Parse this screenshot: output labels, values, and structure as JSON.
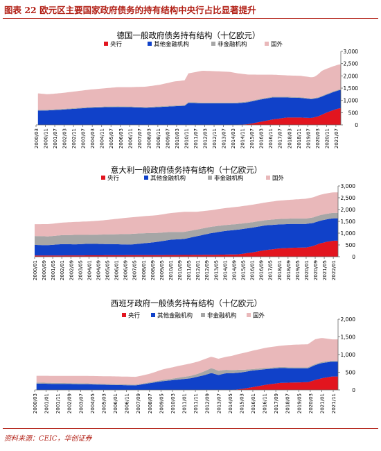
{
  "figure": {
    "title": "图表 22   欧元区主要国家政府债务的持有结构中央行占比显著提升",
    "source": "资料来源：CEIC，华创证券"
  },
  "colors": {
    "central_bank": "#e2151f",
    "other_financial": "#1041c9",
    "non_financial": "#a6a6a6",
    "foreign": "#e9b8ba"
  },
  "chart_data": [
    {
      "type": "area",
      "stacked": true,
      "title": "德国一般政府债务持有结构（十亿欧元）",
      "legend": [
        "央行",
        "其他金融机构",
        "非金融机构",
        "国外"
      ],
      "legend_position": "top",
      "y_axis_position": "right",
      "ylim": [
        0,
        3000
      ],
      "yticks": [
        "0",
        "500",
        "1,000",
        "1,500",
        "2,000",
        "2,500",
        "3,000"
      ],
      "x_start": "2000/03",
      "x_ticks": [
        "2000/03",
        "2000/11",
        "2001/07",
        "2002/03",
        "2002/11",
        "2003/07",
        "2004/03",
        "2004/11",
        "2005/07",
        "2006/03",
        "2006/11",
        "2007/07",
        "2008/03",
        "2008/11",
        "2009/07",
        "2010/03",
        "2010/11",
        "2011/07",
        "2012/03",
        "2012/11",
        "2013/07",
        "2014/03",
        "2014/11",
        "2015/07",
        "2016/03",
        "2016/11",
        "2017/07",
        "2018/03",
        "2018/11",
        "2019/07",
        "2020/03",
        "2020/11",
        "2021/07"
      ],
      "series": [
        {
          "name": "央行",
          "color": "#e2151f",
          "points": [
            [
              2000.2,
              0
            ],
            [
              2014.5,
              0
            ],
            [
              2015.25,
              30
            ],
            [
              2016.0,
              110
            ],
            [
              2017.0,
              220
            ],
            [
              2018.0,
              300
            ],
            [
              2019.0,
              300
            ],
            [
              2019.75,
              280
            ],
            [
              2020.25,
              350
            ],
            [
              2020.75,
              480
            ],
            [
              2021.25,
              590
            ],
            [
              2021.75,
              680
            ]
          ]
        },
        {
          "name": "其他金融机构",
          "color": "#1041c9",
          "points": [
            [
              2000.2,
              580
            ],
            [
              2001.0,
              590
            ],
            [
              2002.0,
              620
            ],
            [
              2003.0,
              660
            ],
            [
              2004.0,
              700
            ],
            [
              2005.0,
              720
            ],
            [
              2006.0,
              730
            ],
            [
              2007.0,
              720
            ],
            [
              2008.0,
              700
            ],
            [
              2009.0,
              730
            ],
            [
              2010.0,
              760
            ],
            [
              2010.75,
              780
            ],
            [
              2011.0,
              900
            ],
            [
              2012.0,
              880
            ],
            [
              2013.0,
              880
            ],
            [
              2014.0,
              880
            ],
            [
              2015.0,
              890
            ],
            [
              2016.0,
              910
            ],
            [
              2017.0,
              900
            ],
            [
              2018.0,
              820
            ],
            [
              2019.0,
              800
            ],
            [
              2020.0,
              760
            ],
            [
              2020.5,
              740
            ],
            [
              2021.0,
              730
            ],
            [
              2021.75,
              740
            ]
          ]
        },
        {
          "name": "非金融机构",
          "color": "#a6a6a6",
          "points": [
            [
              2000.2,
              30
            ],
            [
              2005.0,
              30
            ],
            [
              2010.0,
              30
            ],
            [
              2015.0,
              30
            ],
            [
              2021.75,
              30
            ]
          ]
        },
        {
          "name": "国外",
          "color": "#e9b8ba",
          "points": [
            [
              2000.2,
              680
            ],
            [
              2001.0,
              630
            ],
            [
              2002.0,
              650
            ],
            [
              2003.0,
              680
            ],
            [
              2004.0,
              710
            ],
            [
              2005.0,
              740
            ],
            [
              2006.0,
              780
            ],
            [
              2007.0,
              790
            ],
            [
              2008.0,
              830
            ],
            [
              2009.0,
              880
            ],
            [
              2010.0,
              980
            ],
            [
              2010.75,
              1010
            ],
            [
              2011.0,
              1170
            ],
            [
              2012.0,
              1300
            ],
            [
              2013.0,
              1280
            ],
            [
              2014.0,
              1250
            ],
            [
              2015.0,
              1130
            ],
            [
              2016.0,
              1000
            ],
            [
              2017.0,
              900
            ],
            [
              2018.0,
              870
            ],
            [
              2019.0,
              870
            ],
            [
              2020.0,
              860
            ],
            [
              2020.5,
              1020
            ],
            [
              2021.0,
              1030
            ],
            [
              2021.75,
              1020
            ]
          ]
        }
      ]
    },
    {
      "type": "area",
      "stacked": true,
      "title": "意大利一般政府债务持有结构（十亿欧元）",
      "legend": [
        "央行",
        "其他金融机构",
        "非金融机构",
        "国外"
      ],
      "legend_position": "top",
      "y_axis_position": "right",
      "ylim": [
        0,
        3000
      ],
      "yticks": [
        "0",
        "500",
        "1,000",
        "1,500",
        "2,000",
        "2,500",
        "3,000"
      ],
      "x_start": "2000/01",
      "x_ticks": [
        "2000/01",
        "2000/09",
        "2001/05",
        "2002/01",
        "2002/09",
        "2003/05",
        "2004/01",
        "2004/09",
        "2005/05",
        "2006/01",
        "2006/09",
        "2007/05",
        "2008/01",
        "2008/09",
        "2009/05",
        "2010/01",
        "2010/09",
        "2011/05",
        "2012/01",
        "2012/09",
        "2013/05",
        "2014/01",
        "2014/09",
        "2015/05",
        "2016/01",
        "2016/09",
        "2017/05",
        "2018/01",
        "2018/09",
        "2019/05",
        "2020/01",
        "2020/09",
        "2021/05",
        "2022/01"
      ],
      "series": [
        {
          "name": "央行",
          "color": "#e2151f",
          "points": [
            [
              2000.0,
              50
            ],
            [
              2005.0,
              60
            ],
            [
              2010.0,
              70
            ],
            [
              2013.0,
              80
            ],
            [
              2015.0,
              100
            ],
            [
              2016.0,
              180
            ],
            [
              2017.0,
              280
            ],
            [
              2018.0,
              350
            ],
            [
              2019.0,
              380
            ],
            [
              2020.0,
              390
            ],
            [
              2020.5,
              450
            ],
            [
              2021.0,
              560
            ],
            [
              2021.5,
              630
            ],
            [
              2022.0,
              680
            ]
          ]
        },
        {
          "name": "其他金融机构",
          "color": "#1041c9",
          "points": [
            [
              2000.0,
              450
            ],
            [
              2001.0,
              440
            ],
            [
              2002.0,
              480
            ],
            [
              2003.0,
              470
            ],
            [
              2004.0,
              490
            ],
            [
              2005.0,
              480
            ],
            [
              2006.0,
              470
            ],
            [
              2007.0,
              450
            ],
            [
              2008.0,
              500
            ],
            [
              2009.0,
              560
            ],
            [
              2010.0,
              650
            ],
            [
              2011.0,
              680
            ],
            [
              2012.0,
              800
            ],
            [
              2013.0,
              920
            ],
            [
              2014.0,
              1000
            ],
            [
              2015.0,
              1050
            ],
            [
              2016.0,
              1050
            ],
            [
              2017.0,
              1050
            ],
            [
              2018.0,
              1020
            ],
            [
              2019.0,
              1010
            ],
            [
              2020.0,
              1000
            ],
            [
              2021.0,
              960
            ],
            [
              2022.0,
              950
            ]
          ]
        },
        {
          "name": "非金融机构",
          "color": "#a6a6a6",
          "points": [
            [
              2000.0,
              380
            ],
            [
              2001.0,
              370
            ],
            [
              2002.0,
              380
            ],
            [
              2003.0,
              400
            ],
            [
              2004.0,
              380
            ],
            [
              2005.0,
              400
            ],
            [
              2006.0,
              420
            ],
            [
              2007.0,
              450
            ],
            [
              2008.0,
              430
            ],
            [
              2009.0,
              380
            ],
            [
              2010.0,
              330
            ],
            [
              2011.0,
              300
            ],
            [
              2012.0,
              280
            ],
            [
              2013.0,
              270
            ],
            [
              2014.0,
              250
            ],
            [
              2015.0,
              240
            ],
            [
              2016.0,
              230
            ],
            [
              2017.0,
              220
            ],
            [
              2018.0,
              230
            ],
            [
              2019.0,
              230
            ],
            [
              2020.0,
              230
            ],
            [
              2021.0,
              240
            ],
            [
              2022.0,
              230
            ]
          ]
        },
        {
          "name": "国外",
          "color": "#e9b8ba",
          "points": [
            [
              2000.0,
              500
            ],
            [
              2001.0,
              520
            ],
            [
              2002.0,
              530
            ],
            [
              2003.0,
              550
            ],
            [
              2004.0,
              570
            ],
            [
              2005.0,
              600
            ],
            [
              2006.0,
              650
            ],
            [
              2007.0,
              700
            ],
            [
              2008.0,
              720
            ],
            [
              2009.0,
              750
            ],
            [
              2010.0,
              800
            ],
            [
              2011.0,
              850
            ],
            [
              2012.0,
              750
            ],
            [
              2013.0,
              700
            ],
            [
              2014.0,
              720
            ],
            [
              2015.0,
              730
            ],
            [
              2016.0,
              740
            ],
            [
              2017.0,
              750
            ],
            [
              2018.0,
              780
            ],
            [
              2019.0,
              800
            ],
            [
              2020.0,
              840
            ],
            [
              2021.0,
              860
            ],
            [
              2022.0,
              870
            ]
          ]
        }
      ]
    },
    {
      "type": "area",
      "stacked": true,
      "title": "西班牙政府一般债务持有结构（十亿欧元）",
      "legend": [
        "央行",
        "其他金融机构",
        "非金融机构",
        "国外"
      ],
      "legend_position": "top",
      "y_axis_position": "right",
      "ylim": [
        0,
        2000
      ],
      "yticks": [
        "0",
        "500",
        "1,000",
        "1,500",
        "2,000"
      ],
      "x_start": "2000/03",
      "x_ticks": [
        "2000/03",
        "2001/01",
        "2001/11",
        "2002/09",
        "2003/07",
        "2004/05",
        "2005/03",
        "2006/01",
        "2006/11",
        "2007/09",
        "2008/07",
        "2009/05",
        "2010/03",
        "2011/01",
        "2011/11",
        "2012/09",
        "2013/07",
        "2014/05",
        "2015/03",
        "2016/01",
        "2016/11",
        "2017/09",
        "2018/07",
        "2019/05",
        "2020/03",
        "2021/01",
        "2021/11"
      ],
      "series": [
        {
          "name": "央行",
          "color": "#e2151f",
          "points": [
            [
              2000.2,
              0
            ],
            [
              2014.5,
              0
            ],
            [
              2015.25,
              30
            ],
            [
              2016.0,
              80
            ],
            [
              2017.0,
              150
            ],
            [
              2018.0,
              200
            ],
            [
              2019.0,
              210
            ],
            [
              2020.0,
              220
            ],
            [
              2020.5,
              280
            ],
            [
              2021.0,
              330
            ],
            [
              2021.75,
              380
            ]
          ]
        },
        {
          "name": "其他金融机构",
          "color": "#1041c9",
          "points": [
            [
              2000.2,
              180
            ],
            [
              2002.0,
              170
            ],
            [
              2004.0,
              160
            ],
            [
              2006.0,
              140
            ],
            [
              2007.5,
              130
            ],
            [
              2008.5,
              190
            ],
            [
              2009.5,
              250
            ],
            [
              2010.5,
              290
            ],
            [
              2011.5,
              330
            ],
            [
              2012.5,
              420
            ],
            [
              2013.0,
              480
            ],
            [
              2013.5,
              420
            ],
            [
              2014.0,
              470
            ],
            [
              2015.0,
              470
            ],
            [
              2016.0,
              470
            ],
            [
              2017.0,
              440
            ],
            [
              2018.0,
              420
            ],
            [
              2019.0,
              400
            ],
            [
              2020.0,
              390
            ],
            [
              2020.5,
              420
            ],
            [
              2021.0,
              430
            ],
            [
              2021.75,
              420
            ]
          ]
        },
        {
          "name": "非金融机构",
          "color": "#a6a6a6",
          "points": [
            [
              2000.2,
              30
            ],
            [
              2005.0,
              25
            ],
            [
              2008.0,
              20
            ],
            [
              2010.0,
              40
            ],
            [
              2012.0,
              80
            ],
            [
              2013.0,
              140
            ],
            [
              2014.0,
              100
            ],
            [
              2015.0,
              80
            ],
            [
              2016.0,
              40
            ],
            [
              2018.0,
              30
            ],
            [
              2021.75,
              30
            ]
          ]
        },
        {
          "name": "国外",
          "color": "#e9b8ba",
          "points": [
            [
              2000.2,
              190
            ],
            [
              2002.0,
              200
            ],
            [
              2004.0,
              210
            ],
            [
              2006.0,
              220
            ],
            [
              2007.5,
              220
            ],
            [
              2008.5,
              240
            ],
            [
              2009.5,
              300
            ],
            [
              2010.5,
              330
            ],
            [
              2011.5,
              350
            ],
            [
              2012.5,
              340
            ],
            [
              2013.0,
              320
            ],
            [
              2014.0,
              360
            ],
            [
              2015.0,
              450
            ],
            [
              2016.0,
              520
            ],
            [
              2017.0,
              570
            ],
            [
              2018.0,
              600
            ],
            [
              2019.0,
              640
            ],
            [
              2020.0,
              650
            ],
            [
              2020.5,
              700
            ],
            [
              2021.0,
              680
            ],
            [
              2021.75,
              600
            ]
          ]
        }
      ]
    }
  ]
}
